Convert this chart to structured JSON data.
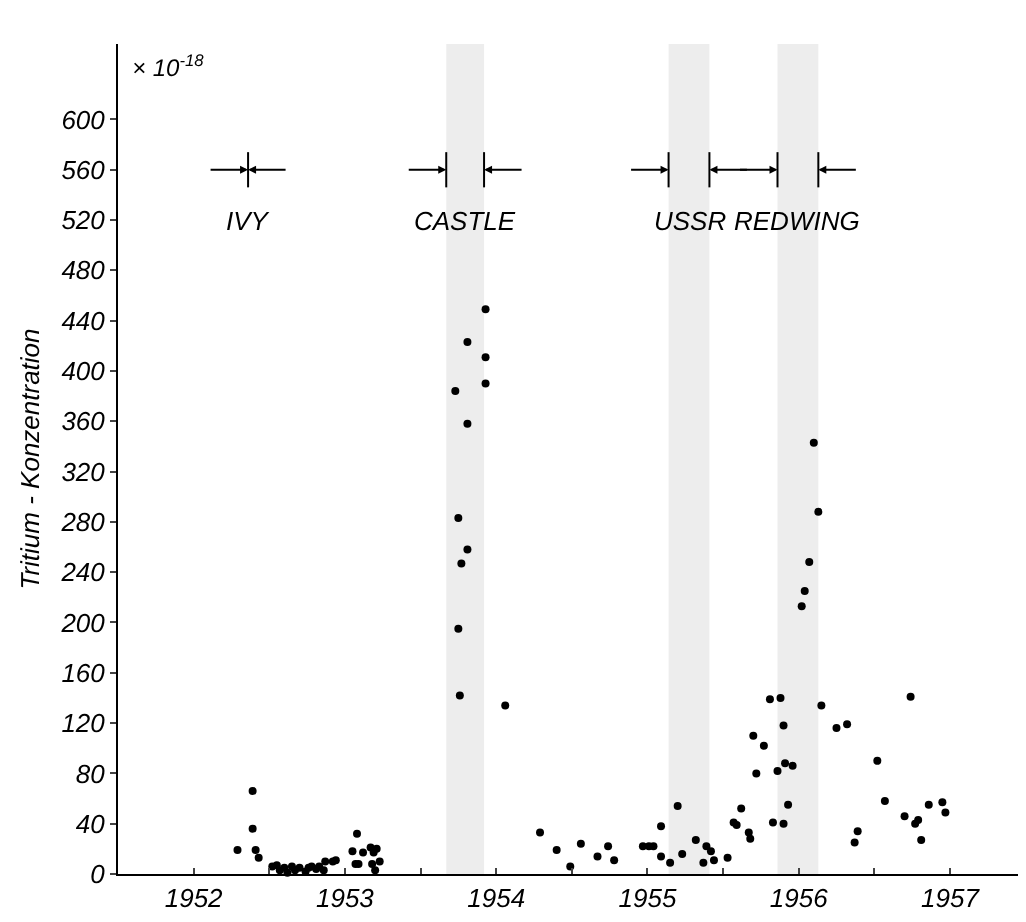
{
  "chart_data": {
    "type": "scatter",
    "ylabel": "Tritium - Konzentration",
    "annotations": [
      "× 10$^{-18}$"
    ],
    "x": [
      1952.79,
      1952.89,
      1952.89,
      1952.91,
      1952.93,
      1953.02,
      1953.05,
      1953.07,
      1953.1,
      1953.12,
      1953.15,
      1953.17,
      1953.2,
      1953.24,
      1953.26,
      1953.28,
      1953.31,
      1953.33,
      1953.36,
      1953.37,
      1953.42,
      1953.44,
      1953.55,
      1953.57,
      1953.58,
      1953.59,
      1953.62,
      1953.67,
      1953.68,
      1953.69,
      1953.7,
      1953.71,
      1953.73,
      1954.25,
      1954.27,
      1954.31,
      1954.25,
      1954.26,
      1954.56,
      1954.43,
      1954.31,
      1954.43,
      1954.23,
      1954.43,
      1954.31,
      1954.79,
      1954.9,
      1954.99,
      1955.06,
      1955.17,
      1955.24,
      1955.28,
      1955.47,
      1955.51,
      1955.54,
      1955.59,
      1955.59,
      1955.65,
      1955.7,
      1955.73,
      1955.82,
      1955.87,
      1955.89,
      1955.92,
      1955.94,
      1956.03,
      1956.07,
      1956.09,
      1956.12,
      1956.17,
      1956.18,
      1956.2,
      1956.22,
      1956.27,
      1956.31,
      1956.33,
      1956.36,
      1956.38,
      1956.4,
      1956.4,
      1956.41,
      1956.46,
      1956.43,
      1956.52,
      1956.54,
      1956.57,
      1956.63,
      1956.6,
      1956.65,
      1956.75,
      1956.82,
      1956.87,
      1956.89,
      1957.02,
      1957.07,
      1957.2,
      1957.24,
      1957.27,
      1957.29,
      1957.31,
      1957.36,
      1957.45,
      1957.47
    ],
    "values": [
      19,
      66,
      36,
      19,
      13,
      6,
      7,
      3,
      5,
      1,
      6,
      3,
      5,
      2,
      5,
      6,
      4,
      6,
      3,
      10,
      10,
      11,
      18,
      8,
      32,
      8,
      17,
      21,
      8,
      17,
      3,
      20,
      10,
      283,
      247,
      258,
      195,
      142,
      134,
      449,
      423,
      411,
      384,
      390,
      358,
      33,
      19,
      6,
      24,
      14,
      22,
      11,
      22,
      22,
      22,
      38,
      14,
      9,
      54,
      16,
      27,
      9,
      22,
      18,
      11,
      13,
      41,
      39,
      52,
      33,
      28,
      110,
      80,
      102,
      139,
      41,
      82,
      140,
      118,
      40,
      88,
      86,
      55,
      213,
      225,
      248,
      288,
      343,
      134,
      116,
      119,
      25,
      34,
      90,
      58,
      46,
      141,
      40,
      43,
      27,
      55,
      57,
      49
    ],
    "color": "#000000",
    "marker": "circle",
    "grid": false,
    "xlim": [
      1952,
      1957.95
    ],
    "ylim": [
      0,
      660
    ],
    "xticks": [
      {
        "value": 1952,
        "label": null
      },
      {
        "value": 1952.5,
        "label": "1952"
      },
      {
        "value": 1953,
        "label": null
      },
      {
        "value": 1953.5,
        "label": "1953"
      },
      {
        "value": 1954,
        "label": null
      },
      {
        "value": 1954.5,
        "label": "1954"
      },
      {
        "value": 1955,
        "label": null
      },
      {
        "value": 1955.5,
        "label": "1955"
      },
      {
        "value": 1956,
        "label": null
      },
      {
        "value": 1956.5,
        "label": "1956"
      },
      {
        "value": 1957,
        "label": null
      },
      {
        "value": 1957.5,
        "label": "1957"
      }
    ],
    "yticks": [
      0,
      40,
      80,
      120,
      160,
      200,
      240,
      280,
      320,
      360,
      400,
      440,
      480,
      520,
      560,
      600
    ],
    "ref_lines": [
      {
        "axis": "x",
        "value": 1952.86,
        "label": "IVY"
      }
    ],
    "bands": [
      {
        "axis": "x",
        "from": 1954.17,
        "to": 1954.42,
        "label": "CASTLE",
        "color": "#000000"
      },
      {
        "axis": "x",
        "from": 1955.64,
        "to": 1955.91,
        "label": "USSR",
        "color": "#000000"
      },
      {
        "axis": "x",
        "from": 1956.36,
        "to": 1956.63,
        "label": "REDWING",
        "color": "#000000"
      }
    ]
  }
}
